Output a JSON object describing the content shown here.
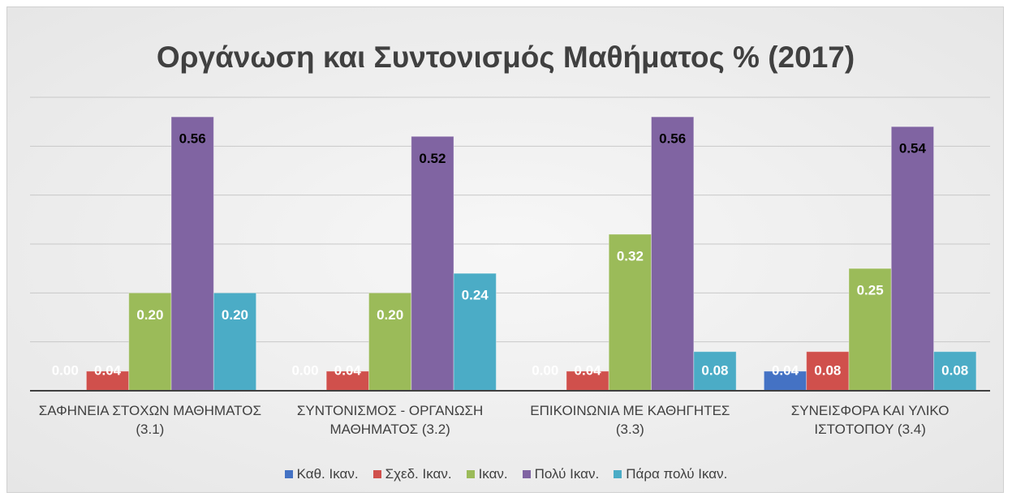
{
  "chart_data": {
    "type": "bar",
    "title": "Οργάνωση και Συντονισμός Μαθήματος % (2017)",
    "categories": [
      "ΣΑΦΗΝΕΙΑ ΣΤΟΧΩΝ ΜΑΘΗΜΑΤΟΣ (3.1)",
      "ΣΥΝΤΟΝΙΣΜΟΣ - ΟΡΓΑΝΩΣΗ ΜΑΘΗΜΑΤΟΣ (3.2)",
      "ΕΠΙΚΟΙΝΩΝΙΑ ΜΕ ΚΑΘΗΓΗΤΕΣ (3.3)",
      "ΣΥΝΕΙΣΦΟΡΑ ΚΑΙ ΥΛΙΚΟ ΙΣΤΟΤΟΠΟΥ (3.4)"
    ],
    "series": [
      {
        "name": "Καθ. Ικαν.",
        "color": "#4472c4",
        "label_color": "#ffffff",
        "values": [
          0,
          0,
          0,
          0.04
        ],
        "value_labels": [
          "0.00",
          "0.00",
          "0.00",
          "0.04"
        ]
      },
      {
        "name": "Σχεδ. Ικαν.",
        "color": "#d0504c",
        "label_color": "#ffffff",
        "values": [
          0.04,
          0.04,
          0.04,
          0.08
        ],
        "value_labels": [
          "0.04",
          "0.04",
          "0.04",
          "0.08"
        ]
      },
      {
        "name": "Ικαν.",
        "color": "#9bbb59",
        "label_color": "#ffffff",
        "values": [
          0.2,
          0.2,
          0.32,
          0.25
        ],
        "value_labels": [
          "0.20",
          "0.20",
          "0.32",
          "0.25"
        ]
      },
      {
        "name": "Πολύ Ικαν.",
        "color": "#8064a2",
        "label_color": "#000000",
        "values": [
          0.56,
          0.52,
          0.56,
          0.54
        ],
        "value_labels": [
          "0.56",
          "0.52",
          "0.56",
          "0.54"
        ]
      },
      {
        "name": "Πάρα πολύ Ικαν.",
        "color": "#4bacc6",
        "label_color": "#ffffff",
        "values": [
          0.2,
          0.24,
          0.08,
          0.08
        ],
        "value_labels": [
          "0.20",
          "0.24",
          "0.08",
          "0.08"
        ]
      }
    ],
    "ylim": [
      0,
      0.6
    ],
    "yticks": [
      0,
      0.1,
      0.2,
      0.3,
      0.4,
      0.5,
      0.6
    ],
    "grid": true,
    "legend": "bottom"
  }
}
